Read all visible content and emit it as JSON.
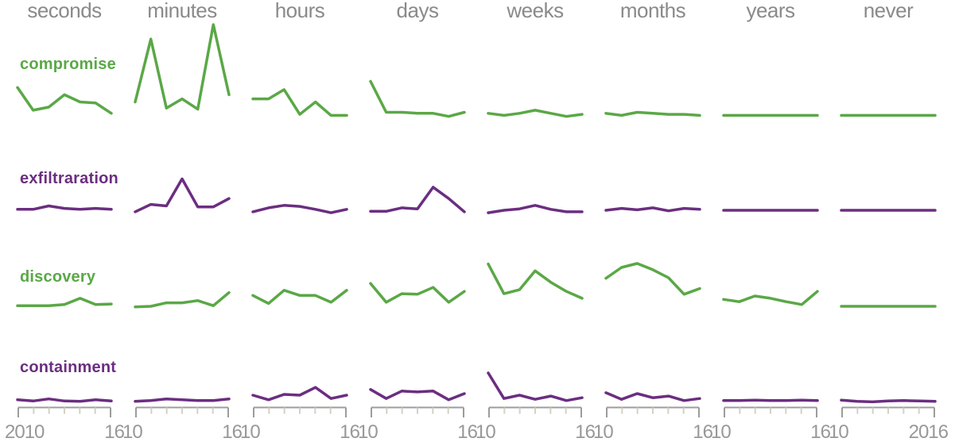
{
  "colors": {
    "green": "#5aa846",
    "purple": "#6b2e80",
    "header_gray": "#8a8a8a",
    "axis_gray": "#9c9c9c",
    "axis_minor_tick": "#d4d0c3",
    "axis_label_gray": "#989898"
  },
  "chart_data": {
    "type": "line",
    "layout": "small_multiples_grid",
    "title": "",
    "x": [
      2010,
      2011,
      2012,
      2013,
      2014,
      2015,
      2016
    ],
    "columns": [
      "seconds",
      "minutes",
      "hours",
      "days",
      "weeks",
      "months",
      "years",
      "never"
    ],
    "axis_labels": [
      {
        "left": "2010",
        "right": "16"
      },
      {
        "left": "10",
        "right": "16"
      },
      {
        "left": "10",
        "right": "16"
      },
      {
        "left": "10",
        "right": "16"
      },
      {
        "left": "10",
        "right": "16"
      },
      {
        "left": "10",
        "right": "16"
      },
      {
        "left": "10",
        "right": "16"
      },
      {
        "left": "10",
        "right": "2016"
      }
    ],
    "y_scale": "relative 0-100 per panel (no y-axis shown)",
    "grid": false,
    "legend": "row labels on left, colored by series",
    "rows": [
      {
        "label": "compromise",
        "color": "#5aa846",
        "series": {
          "seconds": [
            39,
            17,
            20,
            32,
            25,
            24,
            14
          ],
          "minutes": [
            25,
            86,
            19,
            28,
            18,
            100,
            32
          ],
          "hours": [
            28,
            28,
            37,
            13,
            25,
            12,
            12
          ],
          "days": [
            45,
            15,
            15,
            14,
            14,
            11,
            15
          ],
          "weeks": [
            14,
            12,
            14,
            17,
            14,
            11,
            13
          ],
          "months": [
            14,
            12,
            15,
            14,
            13,
            13,
            12
          ],
          "years": [
            12,
            12,
            12,
            12,
            12,
            12,
            12
          ],
          "never": [
            12,
            12,
            12,
            12,
            12,
            12,
            12
          ]
        }
      },
      {
        "label": "exfiltraration",
        "color": "#6b2e80",
        "series": {
          "seconds": [
            10,
            10,
            17,
            12,
            10,
            12,
            10
          ],
          "minutes": [
            5,
            20,
            17,
            72,
            15,
            15,
            32
          ],
          "hours": [
            5,
            13,
            18,
            16,
            10,
            3,
            10
          ],
          "days": [
            6,
            6,
            13,
            11,
            55,
            32,
            5
          ],
          "weeks": [
            3,
            8,
            11,
            18,
            10,
            5,
            5
          ],
          "months": [
            8,
            12,
            9,
            13,
            7,
            12,
            10
          ],
          "years": [
            8,
            8,
            8,
            8,
            8,
            8,
            8
          ],
          "never": [
            8,
            8,
            8,
            8,
            8,
            8,
            8
          ]
        }
      },
      {
        "label": "discovery",
        "color": "#5aa846",
        "series": {
          "seconds": [
            8,
            8,
            8,
            10,
            21,
            10,
            11
          ],
          "minutes": [
            6,
            7,
            13,
            13,
            17,
            8,
            31
          ],
          "hours": [
            26,
            12,
            35,
            26,
            26,
            14,
            35
          ],
          "days": [
            47,
            14,
            29,
            28,
            40,
            14,
            33
          ],
          "weeks": [
            81,
            29,
            36,
            69,
            49,
            33,
            21
          ],
          "months": [
            56,
            75,
            82,
            71,
            57,
            28,
            38
          ],
          "years": [
            19,
            15,
            25,
            21,
            15,
            10,
            33
          ],
          "never": [
            7,
            7,
            7,
            7,
            7,
            7,
            7
          ]
        }
      },
      {
        "label": "containment",
        "color": "#6b2e80",
        "series": {
          "seconds": [
            12,
            9,
            14,
            9,
            8,
            12,
            9
          ],
          "minutes": [
            8,
            10,
            14,
            12,
            10,
            10,
            14
          ],
          "hours": [
            23,
            12,
            25,
            23,
            42,
            15,
            23
          ],
          "days": [
            37,
            15,
            33,
            31,
            33,
            12,
            27
          ],
          "weeks": [
            77,
            15,
            23,
            13,
            21,
            10,
            17
          ],
          "months": [
            29,
            13,
            27,
            17,
            21,
            10,
            15
          ],
          "years": [
            10,
            10,
            11,
            10,
            10,
            11,
            10
          ],
          "never": [
            11,
            8,
            7,
            9,
            10,
            9,
            8
          ]
        }
      }
    ]
  }
}
